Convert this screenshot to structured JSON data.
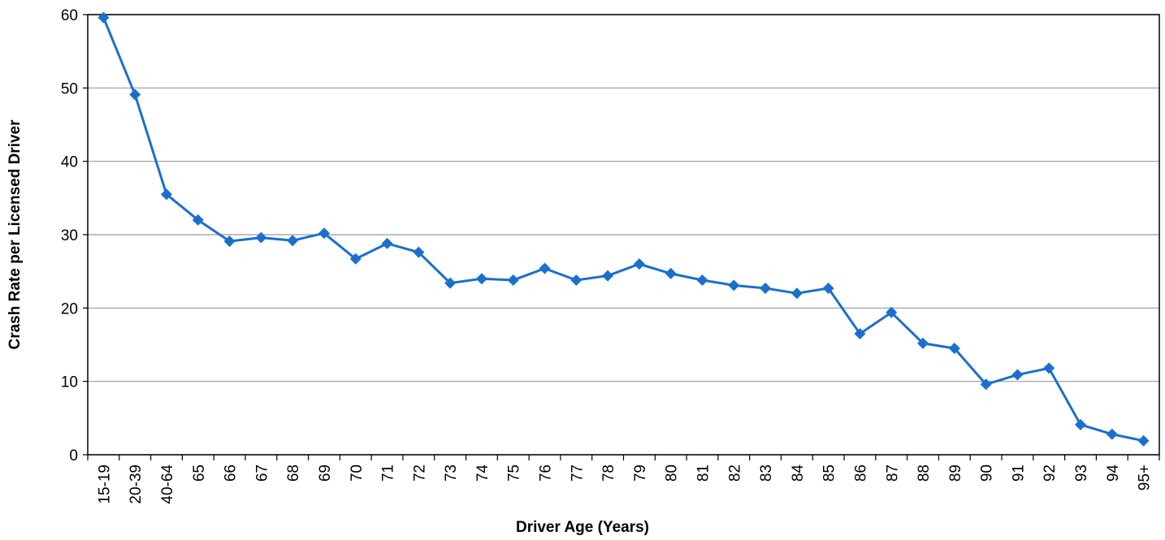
{
  "chart_data": {
    "type": "line",
    "xlabel": "Driver Age (Years)",
    "ylabel": "Crash Rate per Licensed Driver",
    "categories": [
      "15-19",
      "20-39",
      "40-64",
      "65",
      "66",
      "67",
      "68",
      "69",
      "70",
      "71",
      "72",
      "73",
      "74",
      "75",
      "76",
      "77",
      "78",
      "79",
      "80",
      "81",
      "82",
      "83",
      "84",
      "85",
      "86",
      "87",
      "88",
      "89",
      "90",
      "91",
      "92",
      "93",
      "94",
      "95+"
    ],
    "series": [
      {
        "color": "#1a6fcf",
        "values": [
          59.6,
          49.1,
          35.5,
          32.0,
          29.1,
          29.6,
          29.2,
          30.2,
          26.7,
          28.8,
          27.6,
          23.4,
          24.0,
          23.8,
          25.4,
          23.8,
          24.4,
          26.0,
          24.7,
          23.8,
          23.1,
          22.7,
          22.0,
          22.7,
          16.5,
          19.4,
          15.2,
          14.5,
          9.6,
          10.9,
          11.8,
          4.1,
          2.8,
          1.9
        ]
      }
    ],
    "ylim": [
      0,
      60
    ],
    "yticks": [
      0,
      10,
      20,
      30,
      40,
      50,
      60
    ],
    "grid": true
  }
}
